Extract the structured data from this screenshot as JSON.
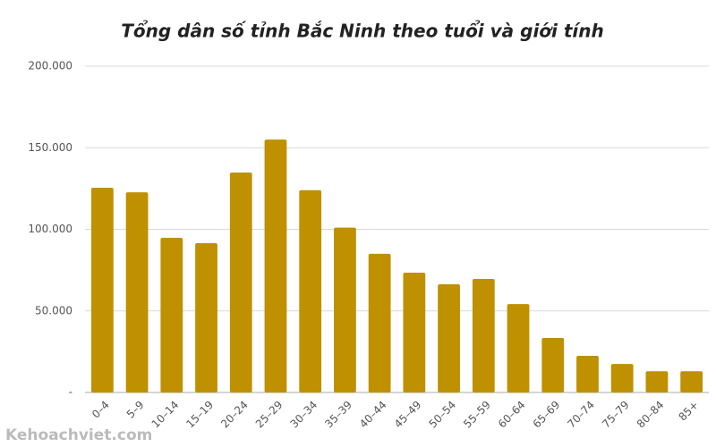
{
  "chart_data": {
    "type": "bar",
    "title": "Tổng dân số tỉnh Bắc Ninh theo tuổi và giới tính",
    "categories": [
      "0–4",
      "5–9",
      "10–14",
      "15–19",
      "20–24",
      "25–29",
      "30–34",
      "35–39",
      "40–44",
      "45–49",
      "50–54",
      "55–59",
      "60–64",
      "65–69",
      "70–74",
      "75–79",
      "80–84",
      "85+"
    ],
    "values": [
      125500,
      122700,
      94800,
      91500,
      134800,
      155000,
      124000,
      101000,
      85000,
      73400,
      66300,
      69600,
      54200,
      33400,
      22500,
      17500,
      13000,
      13000
    ],
    "color": "#bf9000",
    "ylim": [
      0,
      200000
    ],
    "yticks": [
      {
        "value": 0,
        "label": "-"
      },
      {
        "value": 50000,
        "label": "50.000"
      },
      {
        "value": 100000,
        "label": "100.000"
      },
      {
        "value": 150000,
        "label": "150.000"
      },
      {
        "value": 200000,
        "label": "200.000"
      }
    ],
    "grid": true
  },
  "watermark": "Kehoachviet.com"
}
